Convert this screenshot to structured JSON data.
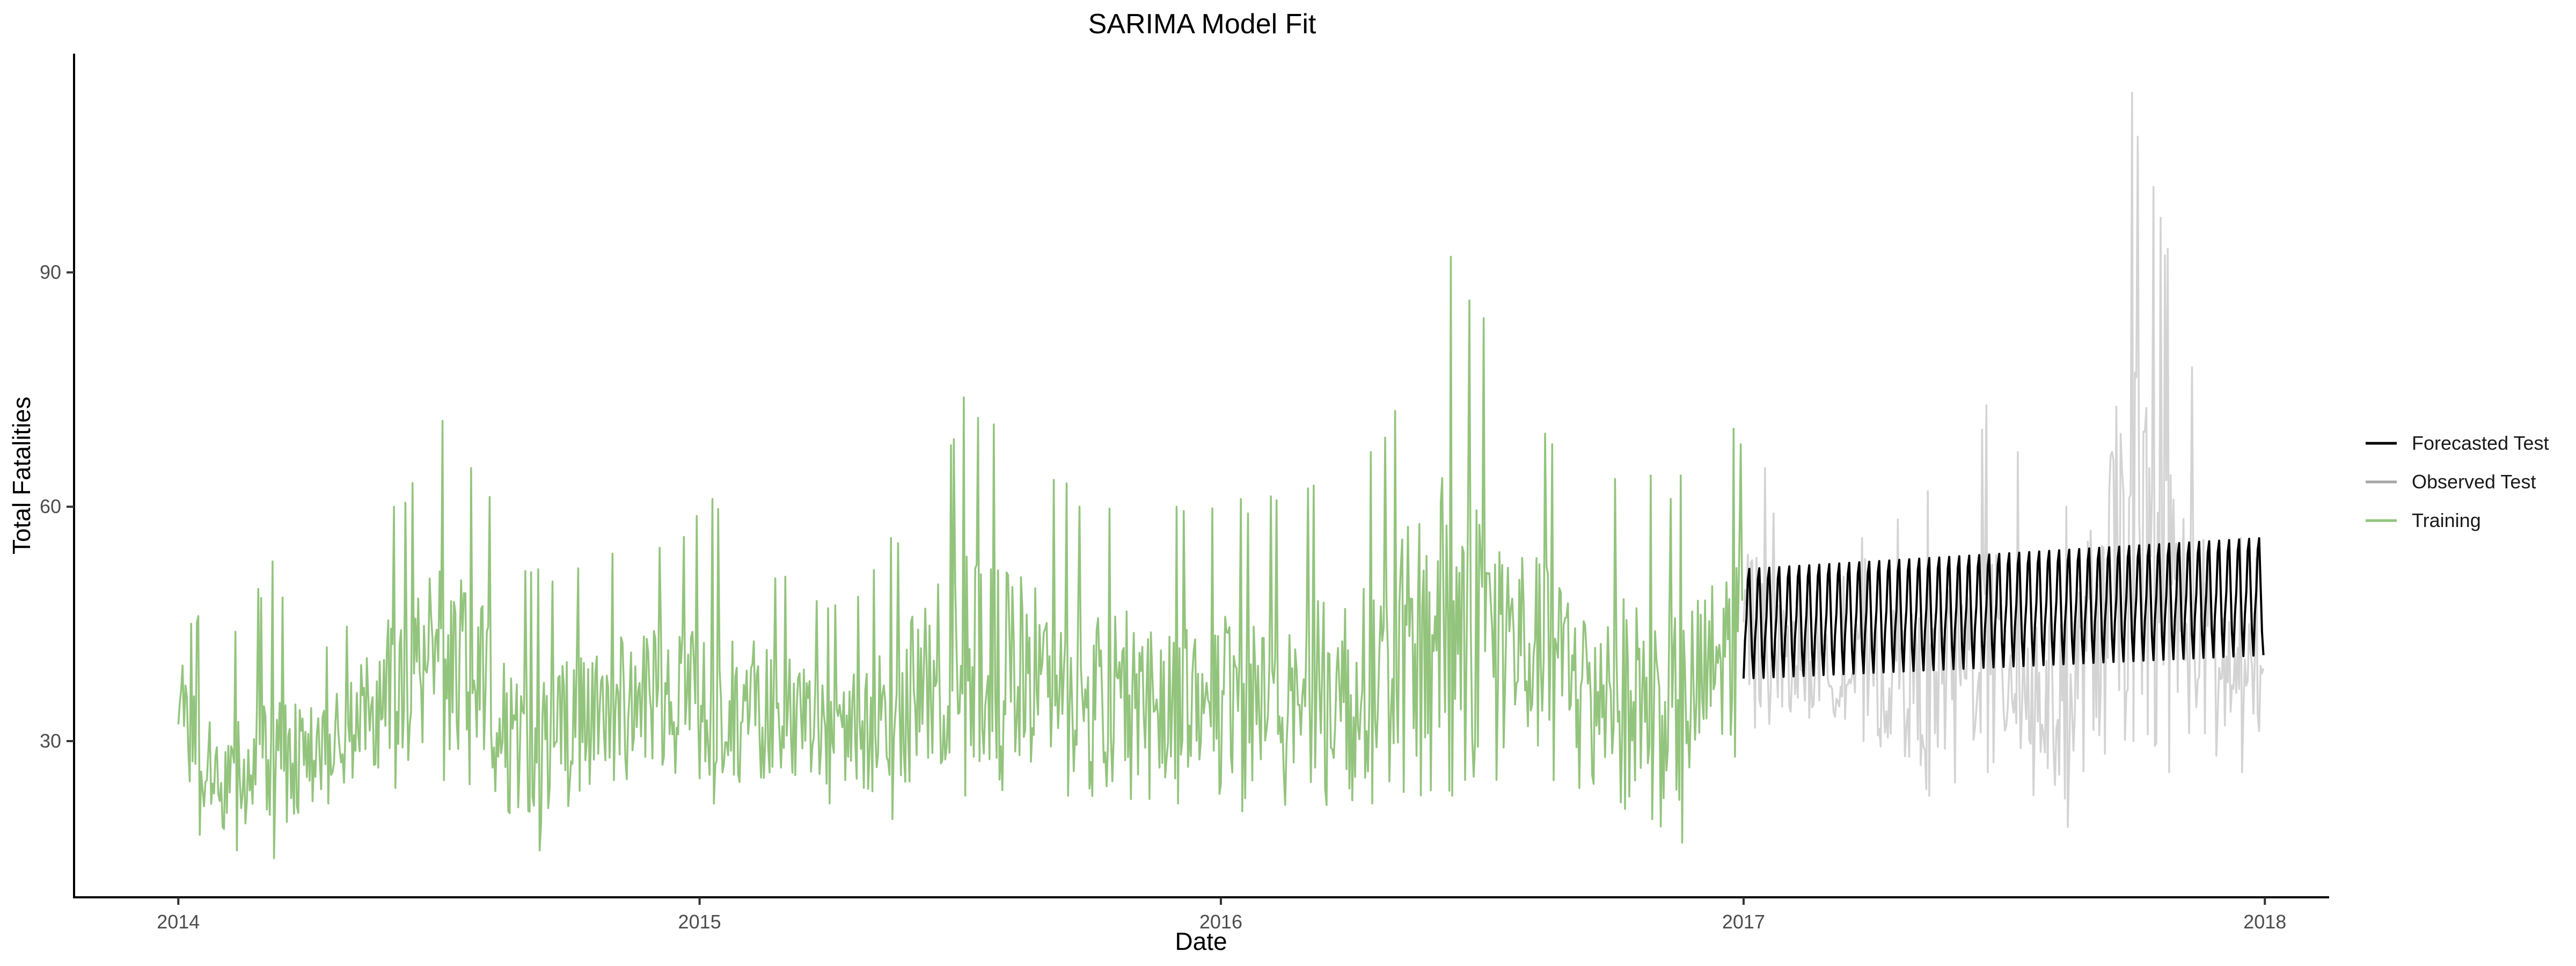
{
  "chart_data": {
    "type": "line",
    "title": "SARIMA Model Fit",
    "xlabel": "Date",
    "ylabel": "Total Fatalities",
    "x_axis": {
      "type": "date",
      "range": [
        "2013-10-20",
        "2018-02-15"
      ],
      "ticks": [
        "2014-01-01",
        "2015-01-01",
        "2016-01-01",
        "2017-01-01",
        "2018-01-01"
      ],
      "tick_labels": [
        "2014",
        "2015",
        "2016",
        "2017",
        "2018"
      ]
    },
    "y_axis": {
      "range": [
        10,
        118
      ],
      "ticks": [
        30,
        60,
        90
      ],
      "tick_labels": [
        "30",
        "60",
        "90"
      ]
    },
    "grid": false,
    "legend_position": "right",
    "legend": [
      {
        "name": "Forecasted Test",
        "color": "#000000"
      },
      {
        "name": "Observed Test",
        "color": "#a6a6a6"
      },
      {
        "name": "Training",
        "color": "#93c47d"
      }
    ],
    "series": [
      {
        "name": "Training",
        "color": "#93c47d",
        "x_start": "2014-01-01",
        "x_end": "2016-12-31",
        "frequency": "daily",
        "envelope": [
          {
            "x": "2014-01-01",
            "y_min": 29,
            "y_max": 50
          },
          {
            "x": "2014-01-15",
            "y_min": 18,
            "y_max": 46
          },
          {
            "x": "2014-02-10",
            "y_min": 16,
            "y_max": 44
          },
          {
            "x": "2014-03-08",
            "y_min": 15,
            "y_max": 53
          },
          {
            "x": "2014-04-15",
            "y_min": 22,
            "y_max": 42
          },
          {
            "x": "2014-06-01",
            "y_min": 24,
            "y_max": 60
          },
          {
            "x": "2014-07-05",
            "y_min": 25,
            "y_max": 71
          },
          {
            "x": "2014-09-10",
            "y_min": 16,
            "y_max": 52
          },
          {
            "x": "2014-11-01",
            "y_min": 25,
            "y_max": 54
          },
          {
            "x": "2015-01-10",
            "y_min": 22,
            "y_max": 61
          },
          {
            "x": "2015-04-01",
            "y_min": 22,
            "y_max": 47
          },
          {
            "x": "2015-05-15",
            "y_min": 20,
            "y_max": 56
          },
          {
            "x": "2015-07-05",
            "y_min": 23,
            "y_max": 74
          },
          {
            "x": "2015-09-15",
            "y_min": 23,
            "y_max": 63
          },
          {
            "x": "2015-12-01",
            "y_min": 22,
            "y_max": 60
          },
          {
            "x": "2016-01-15",
            "y_min": 21,
            "y_max": 61
          },
          {
            "x": "2016-04-15",
            "y_min": 22,
            "y_max": 67
          },
          {
            "x": "2016-06-10",
            "y_min": 23,
            "y_max": 92
          },
          {
            "x": "2016-08-20",
            "y_min": 25,
            "y_max": 68
          },
          {
            "x": "2016-10-28",
            "y_min": 20,
            "y_max": 64
          },
          {
            "x": "2016-11-18",
            "y_min": 17,
            "y_max": 64
          },
          {
            "x": "2016-12-25",
            "y_min": 28,
            "y_max": 70
          }
        ]
      },
      {
        "name": "Observed Test",
        "color": "#d3d3d3",
        "x_start": "2017-01-01",
        "x_end": "2017-12-31",
        "frequency": "daily",
        "envelope": [
          {
            "x": "2017-01-01",
            "y_min": 31,
            "y_max": 74
          },
          {
            "x": "2017-02-15",
            "y_min": 33,
            "y_max": 48
          },
          {
            "x": "2017-03-25",
            "y_min": 30,
            "y_max": 56
          },
          {
            "x": "2017-05-10",
            "y_min": 23,
            "y_max": 62
          },
          {
            "x": "2017-06-20",
            "y_min": 26,
            "y_max": 73
          },
          {
            "x": "2017-08-15",
            "y_min": 19,
            "y_max": 60
          },
          {
            "x": "2017-09-30",
            "y_min": 30,
            "y_max": 113
          },
          {
            "x": "2017-10-25",
            "y_min": 26,
            "y_max": 93
          },
          {
            "x": "2017-12-15",
            "y_min": 26,
            "y_max": 56
          },
          {
            "x": "2017-12-31",
            "y_min": 29,
            "y_max": 56
          }
        ]
      },
      {
        "name": "Forecasted Test",
        "color": "#000000",
        "x_start": "2017-01-01",
        "x_end": "2017-12-31",
        "frequency": "daily",
        "weekly_cycle": {
          "start": {
            "x": "2017-01-01",
            "y_min": 38,
            "y_max": 52
          },
          "end": {
            "x": "2017-12-31",
            "y_min": 41,
            "y_max": 56
          }
        }
      }
    ]
  }
}
